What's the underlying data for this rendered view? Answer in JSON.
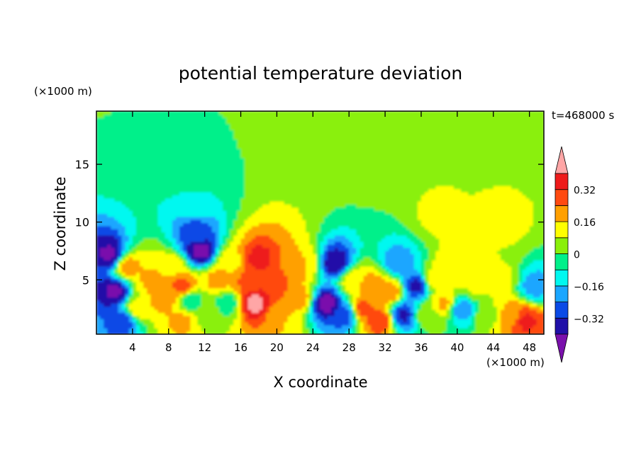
{
  "chart_data": {
    "type": "heatmap",
    "title": "potential temperature deviation",
    "xlabel": "X coordinate",
    "ylabel": "Z coordinate",
    "x_unit": "(×1000 m)",
    "z_unit": "(×1000 m)",
    "time_label": "t=468000 s",
    "xlim": [
      0,
      49.6
    ],
    "zlim": [
      0.3,
      19.6
    ],
    "x_ticks": [
      4,
      8,
      12,
      16,
      20,
      24,
      28,
      32,
      36,
      40,
      44,
      48
    ],
    "z_ticks": [
      5,
      10,
      15
    ],
    "colorbar": {
      "levels": [
        -0.4,
        -0.32,
        -0.24,
        -0.16,
        -0.08,
        0,
        0.08,
        0.16,
        0.24,
        0.32,
        0.4
      ],
      "labeled_levels": [
        0.32,
        0.16,
        0,
        -0.16,
        -0.32
      ],
      "tick_labels": [
        "0.32",
        "0.16",
        "0",
        "−0.16",
        "−0.32"
      ],
      "colors": [
        "#7a10ac",
        "#2010a8",
        "#0a4ae6",
        "#1aa6ff",
        "#00f8f0",
        "#00f08a",
        "#8af00a",
        "#ffff00",
        "#ffa000",
        "#ff4a10",
        "#ee1a1a",
        "#ffa6a6"
      ]
    },
    "background_value": 0.02,
    "features": [
      {
        "x": 1.5,
        "z": 7.2,
        "value": -0.42
      },
      {
        "x": 2,
        "z": 4,
        "value": -0.42
      },
      {
        "x": 3,
        "z": 1.5,
        "value": -0.3
      },
      {
        "x": 3.5,
        "z": 6.2,
        "value": 0.2
      },
      {
        "x": 4.5,
        "z": 2.5,
        "value": 0.14
      },
      {
        "x": 6,
        "z": 5,
        "value": 0.18
      },
      {
        "x": 7.5,
        "z": 3.5,
        "value": 0.22
      },
      {
        "x": 8.5,
        "z": 6,
        "value": 0.15
      },
      {
        "x": 9.5,
        "z": 4.5,
        "value": 0.28
      },
      {
        "x": 9.5,
        "z": 1.5,
        "value": 0.18
      },
      {
        "x": 10.5,
        "z": 3.2,
        "value": -0.06
      },
      {
        "x": 11.5,
        "z": 7.5,
        "value": -0.44
      },
      {
        "x": 11,
        "z": 9,
        "value": -0.28
      },
      {
        "x": 11,
        "z": 12,
        "value": -0.08
      },
      {
        "x": 12.5,
        "z": 2,
        "value": 0.05
      },
      {
        "x": 13.5,
        "z": 5,
        "value": 0.2
      },
      {
        "x": 14.5,
        "z": 3,
        "value": -0.06
      },
      {
        "x": 15,
        "z": 6.5,
        "value": 0.14
      },
      {
        "x": 16.5,
        "z": 5,
        "value": 0.25
      },
      {
        "x": 17.5,
        "z": 3,
        "value": 0.44
      },
      {
        "x": 18,
        "z": 6.8,
        "value": 0.36
      },
      {
        "x": 19.5,
        "z": 4.5,
        "value": 0.32
      },
      {
        "x": 20.5,
        "z": 2,
        "value": 0.16
      },
      {
        "x": 21.5,
        "z": 6,
        "value": 0.24
      },
      {
        "x": 22.5,
        "z": 3.5,
        "value": 0.2
      },
      {
        "x": 23,
        "z": 6.5,
        "value": 0.16
      },
      {
        "x": 25.5,
        "z": 3,
        "value": -0.45
      },
      {
        "x": 26.5,
        "z": 6.5,
        "value": -0.4
      },
      {
        "x": 27.5,
        "z": 2,
        "value": -0.3
      },
      {
        "x": 28.5,
        "z": 5,
        "value": 0.14
      },
      {
        "x": 29.5,
        "z": 2.5,
        "value": 0.28
      },
      {
        "x": 30.5,
        "z": 4.5,
        "value": 0.22
      },
      {
        "x": 31.5,
        "z": 1.5,
        "value": 0.3
      },
      {
        "x": 32.5,
        "z": 4,
        "value": 0.22
      },
      {
        "x": 33.5,
        "z": 6.5,
        "value": -0.22
      },
      {
        "x": 34,
        "z": 2,
        "value": -0.35
      },
      {
        "x": 35.5,
        "z": 4.5,
        "value": -0.35
      },
      {
        "x": 36.5,
        "z": 2,
        "value": 0.04
      },
      {
        "x": 37.5,
        "z": 5,
        "value": 0.14
      },
      {
        "x": 38.5,
        "z": 3,
        "value": 0.18
      },
      {
        "x": 39.5,
        "z": 6,
        "value": 0.16
      },
      {
        "x": 40.5,
        "z": 2.5,
        "value": -0.22
      },
      {
        "x": 42,
        "z": 4.5,
        "value": 0.1
      },
      {
        "x": 43.5,
        "z": 2,
        "value": 0.06
      },
      {
        "x": 45,
        "z": 5,
        "value": 0.1
      },
      {
        "x": 46,
        "z": 2,
        "value": 0.2
      },
      {
        "x": 47.5,
        "z": 1.5,
        "value": 0.34
      },
      {
        "x": 48.5,
        "z": 4.5,
        "value": -0.2
      },
      {
        "x": 38,
        "z": 10.5,
        "value": 0.1
      },
      {
        "x": 45,
        "z": 10,
        "value": 0.1
      },
      {
        "x": 9,
        "z": 16,
        "value": -0.02
      },
      {
        "x": 22,
        "z": 17,
        "value": 0.01
      },
      {
        "x": 31,
        "z": 16,
        "value": 0.05
      }
    ]
  }
}
